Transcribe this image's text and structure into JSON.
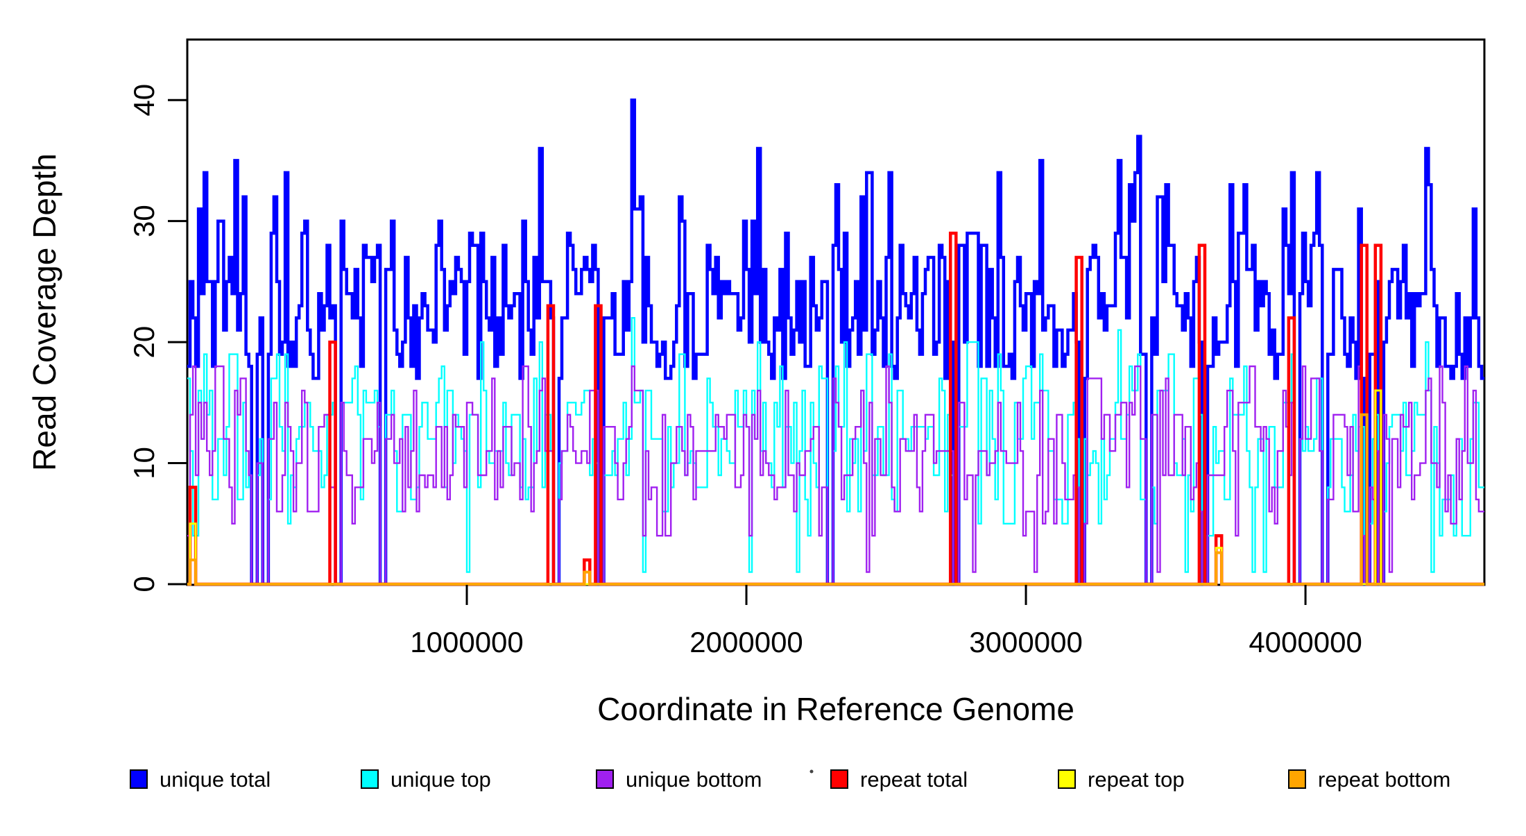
{
  "figure": {
    "background": "#ffffff",
    "xlabel": "Coordinate in Reference Genome",
    "ylabel": "Read Coverage Depth"
  },
  "chart_data": {
    "type": "step-line",
    "title": "",
    "xlabel": "Coordinate in Reference Genome",
    "ylabel": "Read Coverage Depth",
    "xlim_bp": [
      0,
      4640000
    ],
    "ylim": [
      0,
      45
    ],
    "xticks": [
      1000000,
      2000000,
      3000000,
      4000000
    ],
    "xtick_labels": [
      "1000000",
      "2000000",
      "3000000",
      "4000000"
    ],
    "yticks": [
      0,
      10,
      20,
      30,
      40
    ],
    "ytick_labels": [
      "0",
      "10",
      "20",
      "30",
      "40"
    ],
    "grid": false,
    "legend_position": "bottom",
    "bin_size_bp": 10000,
    "random_seed": 20240217,
    "series": [
      {
        "id": "unique_total",
        "label": "unique total",
        "color": "#0000ff",
        "stroke": 4.5,
        "baseline": {
          "mean": 23,
          "typical_min": 17,
          "typical_max": 34
        }
      },
      {
        "id": "unique_top",
        "label": "unique top",
        "color": "#00ffff",
        "stroke": 2.4,
        "baseline": {
          "mean": 11.5,
          "typical_min": 4,
          "typical_max": 21
        }
      },
      {
        "id": "unique_bottom",
        "label": "unique bottom",
        "color": "#a020f0",
        "stroke": 2.4,
        "baseline": {
          "mean": 10.5,
          "typical_min": 4,
          "typical_max": 18
        }
      },
      {
        "id": "repeat_total",
        "label": "repeat total",
        "color": "#ff0000",
        "stroke": 4.5,
        "baseline": {
          "mean": 0
        }
      },
      {
        "id": "repeat_top",
        "label": "repeat top",
        "color": "#ffff00",
        "stroke": 3.0,
        "baseline": {
          "mean": 0
        }
      },
      {
        "id": "repeat_bottom",
        "label": "repeat bottom",
        "color": "#ffa500",
        "stroke": 4.0,
        "baseline": {
          "mean": 0
        }
      }
    ],
    "events": {
      "zero_coverage_gaps_bp": [
        228000,
        273000,
        531000,
        690000,
        1305000,
        1474000,
        2290000,
        2737000,
        3190000,
        3430000,
        3625000,
        3956000,
        4060000,
        4210000,
        4258000
      ],
      "coverage_peaks": [
        {
          "x_bp": 55000,
          "total": 34
        },
        {
          "x_bp": 350000,
          "total": 34
        },
        {
          "x_bp": 1260000,
          "total": 36
        },
        {
          "x_bp": 1592000,
          "total": 40,
          "top": 22
        },
        {
          "x_bp": 2040000,
          "total": 36
        },
        {
          "x_bp": 2320000,
          "total": 33
        },
        {
          "x_bp": 2900000,
          "total": 34
        },
        {
          "x_bp": 3370000,
          "total": 33
        },
        {
          "x_bp": 3950000,
          "total": 34
        },
        {
          "x_bp": 4430000,
          "total": 36
        }
      ],
      "unique_top_dips_bp": [
        995000,
        1630000,
        2010000,
        2180000,
        3570000,
        3810000,
        3850000,
        4450000
      ],
      "unique_bottom_dips_bp": [
        2430000,
        2810000,
        3030000,
        3470000,
        4300000
      ],
      "repeat_spikes": [
        {
          "x_bp": 15000,
          "total": 8,
          "top": 5,
          "bottom": 2
        },
        {
          "x_bp": 520000,
          "total": 20,
          "top": 0,
          "bottom": 0
        },
        {
          "x_bp": 1300000,
          "total": 23,
          "top": 0,
          "bottom": 0
        },
        {
          "x_bp": 1424000,
          "total": 2,
          "top": 0,
          "bottom": 1
        },
        {
          "x_bp": 1474000,
          "total": 23,
          "top": 0,
          "bottom": 0
        },
        {
          "x_bp": 2737000,
          "total": 29,
          "top": 0,
          "bottom": 0
        },
        {
          "x_bp": 3190000,
          "total": 27,
          "top": 0,
          "bottom": 0
        },
        {
          "x_bp": 3625000,
          "total": 28,
          "top": 0,
          "bottom": 0
        },
        {
          "x_bp": 3675000,
          "total": 4,
          "top": 3,
          "bottom": 2.6
        },
        {
          "x_bp": 3950000,
          "total": 22,
          "top": 0,
          "bottom": 0
        },
        {
          "x_bp": 4210000,
          "total": 28,
          "top": 0,
          "bottom": 14
        },
        {
          "x_bp": 4258000,
          "total": 28,
          "top": 16,
          "bottom": 0
        }
      ]
    }
  },
  "legend": {
    "items": [
      {
        "label": "unique total",
        "color": "#0000ff"
      },
      {
        "label": "unique top",
        "color": "#00ffff"
      },
      {
        "label": "unique bottom",
        "color": "#a020f0"
      },
      {
        "label": "repeat total",
        "color": "#ff0000"
      },
      {
        "label": "repeat top",
        "color": "#ffff00"
      },
      {
        "label": "repeat bottom",
        "color": "#ffa500"
      }
    ]
  }
}
